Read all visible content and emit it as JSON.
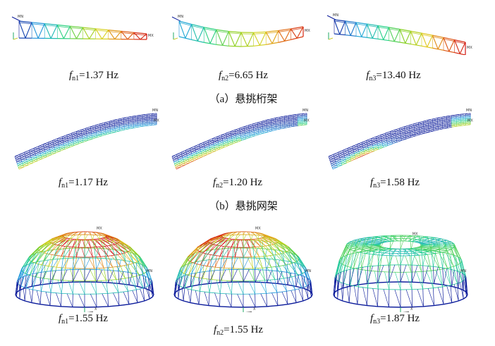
{
  "figure": {
    "rows": [
      {
        "caption": "（a）悬挑桁架",
        "panels": [
          {
            "f": "f",
            "sub": "n1",
            "value": "=1.37 Hz"
          },
          {
            "f": "f",
            "sub": "n2",
            "value": "=6.65 Hz"
          },
          {
            "f": "f",
            "sub": "n3",
            "value": "=13.40 Hz"
          }
        ]
      },
      {
        "caption": "（b）悬挑网架",
        "panels": [
          {
            "f": "f",
            "sub": "n1",
            "value": "=1.17 Hz"
          },
          {
            "f": "f",
            "sub": "n2",
            "value": "=1.20 Hz"
          },
          {
            "f": "f",
            "sub": "n3",
            "value": "=1.58 Hz"
          }
        ]
      },
      {
        "caption": "",
        "panels": [
          {
            "f": "f",
            "sub": "n1",
            "value": "=1.55 Hz"
          },
          {
            "f": "f",
            "sub": "n2",
            "value": "=1.55 Hz"
          },
          {
            "f": "f",
            "sub": "n3",
            "value": "=1.87 Hz"
          }
        ]
      }
    ],
    "plot_tags": {
      "max": "MX",
      "min": "MN",
      "axis_x": "X",
      "axis_y": "Y",
      "axis_z": "Z"
    },
    "colormap": [
      "#0a1a9a",
      "#1fa0e0",
      "#1fd08a",
      "#8ad020",
      "#e0d020",
      "#e06010",
      "#d01010"
    ]
  }
}
